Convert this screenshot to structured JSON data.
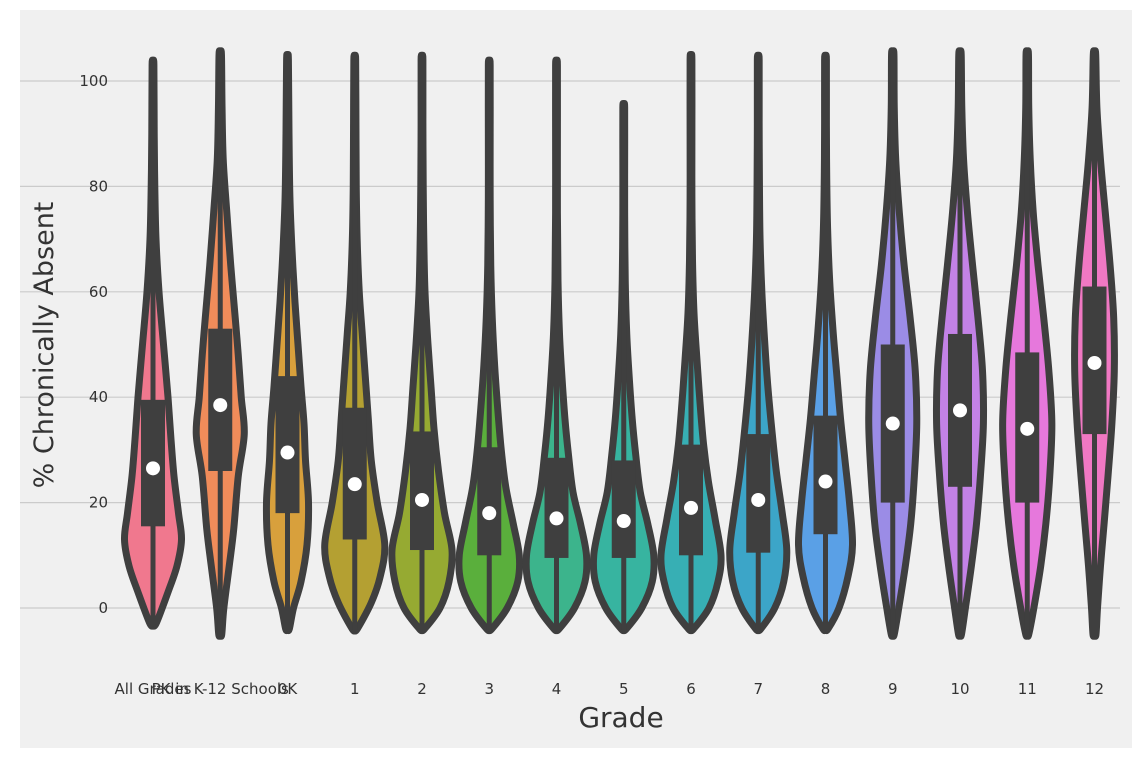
{
  "chart_data": {
    "type": "violin",
    "title": "",
    "xlabel": "Grade",
    "ylabel": "% Chronically Absent",
    "ylim": [
      -10,
      108
    ],
    "yticks": [
      0,
      20,
      40,
      60,
      80,
      100
    ],
    "grid": "horizontal",
    "colors": {
      "background": "#f0f0f0",
      "grid": "#cbcbcb",
      "outline": "#3f3f3f",
      "median": "#ffffff",
      "tick_text": "#333333"
    },
    "categories": [
      "All Grades",
      "PK in K-12 Schools",
      "0K",
      "1",
      "2",
      "3",
      "4",
      "5",
      "6",
      "7",
      "8",
      "9",
      "10",
      "11",
      "12"
    ],
    "series": [
      {
        "category": "All Grades",
        "color": "#f0788e",
        "min": -3,
        "max": 103,
        "q1": 15.5,
        "median": 26.5,
        "q3": 39.5,
        "profile": [
          [
            -3,
            0.1
          ],
          [
            3,
            0.5
          ],
          [
            8,
            0.8
          ],
          [
            13,
            0.95
          ],
          [
            18,
            0.85
          ],
          [
            25,
            0.7
          ],
          [
            32,
            0.6
          ],
          [
            40,
            0.5
          ],
          [
            50,
            0.35
          ],
          [
            60,
            0.2
          ],
          [
            70,
            0.1
          ],
          [
            80,
            0.06
          ],
          [
            90,
            0.04
          ],
          [
            103,
            0.03
          ]
        ]
      },
      {
        "category": "PK in K-12 Schools",
        "color": "#f08c5a",
        "min": -5,
        "max": 105,
        "q1": 26,
        "median": 38.5,
        "q3": 53,
        "profile": [
          [
            -5,
            0.05
          ],
          [
            0,
            0.12
          ],
          [
            8,
            0.3
          ],
          [
            15,
            0.45
          ],
          [
            25,
            0.6
          ],
          [
            33,
            0.8
          ],
          [
            40,
            0.7
          ],
          [
            48,
            0.6
          ],
          [
            55,
            0.5
          ],
          [
            65,
            0.35
          ],
          [
            75,
            0.22
          ],
          [
            85,
            0.1
          ],
          [
            95,
            0.06
          ],
          [
            105,
            0.04
          ]
        ]
      },
      {
        "category": "0K",
        "color": "#d8a03c",
        "min": -4,
        "max": 104,
        "q1": 18,
        "median": 29.5,
        "q3": 44,
        "profile": [
          [
            -4,
            0.06
          ],
          [
            0,
            0.2
          ],
          [
            5,
            0.45
          ],
          [
            12,
            0.65
          ],
          [
            20,
            0.7
          ],
          [
            28,
            0.6
          ],
          [
            35,
            0.55
          ],
          [
            42,
            0.45
          ],
          [
            50,
            0.35
          ],
          [
            58,
            0.25
          ],
          [
            68,
            0.15
          ],
          [
            78,
            0.08
          ],
          [
            90,
            0.05
          ],
          [
            104,
            0.03
          ]
        ]
      },
      {
        "category": "1",
        "color": "#b4a032",
        "min": -4,
        "max": 104,
        "q1": 13,
        "median": 23.5,
        "q3": 38,
        "profile": [
          [
            -4,
            0.08
          ],
          [
            1,
            0.55
          ],
          [
            6,
            0.85
          ],
          [
            12,
            1.0
          ],
          [
            20,
            0.75
          ],
          [
            28,
            0.55
          ],
          [
            36,
            0.45
          ],
          [
            44,
            0.35
          ],
          [
            52,
            0.25
          ],
          [
            60,
            0.15
          ],
          [
            70,
            0.08
          ],
          [
            80,
            0.05
          ],
          [
            92,
            0.04
          ],
          [
            104,
            0.03
          ]
        ]
      },
      {
        "category": "2",
        "color": "#96aa32",
        "min": -4,
        "max": 104,
        "q1": 11,
        "median": 20.5,
        "q3": 33.5,
        "profile": [
          [
            -4,
            0.08
          ],
          [
            0,
            0.6
          ],
          [
            5,
            0.9
          ],
          [
            11,
            1.0
          ],
          [
            18,
            0.75
          ],
          [
            26,
            0.55
          ],
          [
            34,
            0.4
          ],
          [
            42,
            0.3
          ],
          [
            50,
            0.2
          ],
          [
            60,
            0.1
          ],
          [
            70,
            0.06
          ],
          [
            80,
            0.04
          ],
          [
            92,
            0.03
          ],
          [
            104,
            0.03
          ]
        ]
      },
      {
        "category": "3",
        "color": "#5aaf3c",
        "min": -4,
        "max": 103,
        "q1": 10,
        "median": 18,
        "q3": 30.5,
        "profile": [
          [
            -4,
            0.08
          ],
          [
            0,
            0.6
          ],
          [
            5,
            0.95
          ],
          [
            10,
            1.0
          ],
          [
            16,
            0.8
          ],
          [
            23,
            0.55
          ],
          [
            30,
            0.4
          ],
          [
            38,
            0.28
          ],
          [
            46,
            0.18
          ],
          [
            55,
            0.1
          ],
          [
            65,
            0.05
          ],
          [
            78,
            0.03
          ],
          [
            90,
            0.03
          ],
          [
            103,
            0.03
          ]
        ]
      },
      {
        "category": "4",
        "color": "#3cb48c",
        "min": -4,
        "max": 103,
        "q1": 9.5,
        "median": 17,
        "q3": 28.5,
        "profile": [
          [
            -4,
            0.08
          ],
          [
            0,
            0.6
          ],
          [
            5,
            0.95
          ],
          [
            10,
            1.0
          ],
          [
            16,
            0.8
          ],
          [
            22,
            0.55
          ],
          [
            29,
            0.4
          ],
          [
            36,
            0.28
          ],
          [
            44,
            0.18
          ],
          [
            52,
            0.1
          ],
          [
            62,
            0.05
          ],
          [
            75,
            0.03
          ],
          [
            90,
            0.03
          ],
          [
            103,
            0.03
          ]
        ]
      },
      {
        "category": "5",
        "color": "#37b4a0",
        "min": -4,
        "max": 95,
        "q1": 9.5,
        "median": 16.5,
        "q3": 28,
        "profile": [
          [
            -4,
            0.08
          ],
          [
            0,
            0.6
          ],
          [
            5,
            0.95
          ],
          [
            10,
            1.0
          ],
          [
            16,
            0.8
          ],
          [
            22,
            0.55
          ],
          [
            29,
            0.4
          ],
          [
            36,
            0.28
          ],
          [
            44,
            0.18
          ],
          [
            52,
            0.1
          ],
          [
            62,
            0.05
          ],
          [
            75,
            0.03
          ],
          [
            85,
            0.03
          ],
          [
            95,
            0.03
          ]
        ]
      },
      {
        "category": "6",
        "color": "#37afb4",
        "min": -4,
        "max": 104,
        "q1": 10,
        "median": 19,
        "q3": 31,
        "profile": [
          [
            -4,
            0.08
          ],
          [
            0,
            0.6
          ],
          [
            5,
            0.9
          ],
          [
            10,
            1.0
          ],
          [
            17,
            0.8
          ],
          [
            24,
            0.58
          ],
          [
            31,
            0.42
          ],
          [
            39,
            0.3
          ],
          [
            47,
            0.2
          ],
          [
            56,
            0.1
          ],
          [
            66,
            0.05
          ],
          [
            78,
            0.03
          ],
          [
            90,
            0.03
          ],
          [
            104,
            0.03
          ]
        ]
      },
      {
        "category": "7",
        "color": "#3ca5c8",
        "min": -4,
        "max": 104,
        "q1": 10.5,
        "median": 20.5,
        "q3": 33,
        "profile": [
          [
            -4,
            0.08
          ],
          [
            0,
            0.55
          ],
          [
            5,
            0.85
          ],
          [
            11,
            0.95
          ],
          [
            18,
            0.8
          ],
          [
            26,
            0.6
          ],
          [
            34,
            0.45
          ],
          [
            42,
            0.32
          ],
          [
            50,
            0.22
          ],
          [
            60,
            0.12
          ],
          [
            70,
            0.06
          ],
          [
            80,
            0.04
          ],
          [
            92,
            0.03
          ],
          [
            104,
            0.03
          ]
        ]
      },
      {
        "category": "8",
        "color": "#5aa0e6",
        "min": -4,
        "max": 104,
        "q1": 14,
        "median": 24,
        "q3": 36.5,
        "profile": [
          [
            -4,
            0.08
          ],
          [
            0,
            0.45
          ],
          [
            6,
            0.75
          ],
          [
            12,
            0.9
          ],
          [
            20,
            0.8
          ],
          [
            28,
            0.65
          ],
          [
            36,
            0.5
          ],
          [
            44,
            0.38
          ],
          [
            52,
            0.26
          ],
          [
            62,
            0.14
          ],
          [
            72,
            0.07
          ],
          [
            82,
            0.04
          ],
          [
            92,
            0.03
          ],
          [
            104,
            0.03
          ]
        ]
      },
      {
        "category": "9",
        "color": "#9b8ce6",
        "min": -5,
        "max": 105,
        "q1": 20,
        "median": 35,
        "q3": 50,
        "profile": [
          [
            -5,
            0.05
          ],
          [
            0,
            0.2
          ],
          [
            8,
            0.42
          ],
          [
            16,
            0.6
          ],
          [
            25,
            0.72
          ],
          [
            35,
            0.8
          ],
          [
            45,
            0.75
          ],
          [
            55,
            0.58
          ],
          [
            65,
            0.38
          ],
          [
            75,
            0.22
          ],
          [
            85,
            0.1
          ],
          [
            95,
            0.05
          ],
          [
            105,
            0.04
          ]
        ]
      },
      {
        "category": "10",
        "color": "#c382e6",
        "min": -5,
        "max": 105,
        "q1": 23,
        "median": 37.5,
        "q3": 52,
        "profile": [
          [
            -5,
            0.05
          ],
          [
            0,
            0.18
          ],
          [
            8,
            0.38
          ],
          [
            16,
            0.55
          ],
          [
            25,
            0.68
          ],
          [
            35,
            0.78
          ],
          [
            45,
            0.75
          ],
          [
            55,
            0.6
          ],
          [
            65,
            0.42
          ],
          [
            75,
            0.25
          ],
          [
            85,
            0.12
          ],
          [
            95,
            0.06
          ],
          [
            105,
            0.04
          ]
        ]
      },
      {
        "category": "11",
        "color": "#e678dc",
        "min": -5,
        "max": 105,
        "q1": 20,
        "median": 34,
        "q3": 48.5,
        "profile": [
          [
            -5,
            0.05
          ],
          [
            0,
            0.22
          ],
          [
            8,
            0.45
          ],
          [
            16,
            0.62
          ],
          [
            25,
            0.75
          ],
          [
            35,
            0.82
          ],
          [
            45,
            0.72
          ],
          [
            55,
            0.55
          ],
          [
            65,
            0.36
          ],
          [
            75,
            0.2
          ],
          [
            85,
            0.1
          ],
          [
            95,
            0.05
          ],
          [
            105,
            0.04
          ]
        ]
      },
      {
        "category": "12",
        "color": "#f078c3",
        "min": -5,
        "max": 105,
        "q1": 33,
        "median": 46.5,
        "q3": 61,
        "profile": [
          [
            -5,
            0.05
          ],
          [
            0,
            0.1
          ],
          [
            8,
            0.2
          ],
          [
            16,
            0.32
          ],
          [
            25,
            0.45
          ],
          [
            35,
            0.58
          ],
          [
            45,
            0.66
          ],
          [
            55,
            0.64
          ],
          [
            65,
            0.52
          ],
          [
            75,
            0.36
          ],
          [
            85,
            0.2
          ],
          [
            95,
            0.08
          ],
          [
            105,
            0.04
          ]
        ]
      }
    ]
  }
}
